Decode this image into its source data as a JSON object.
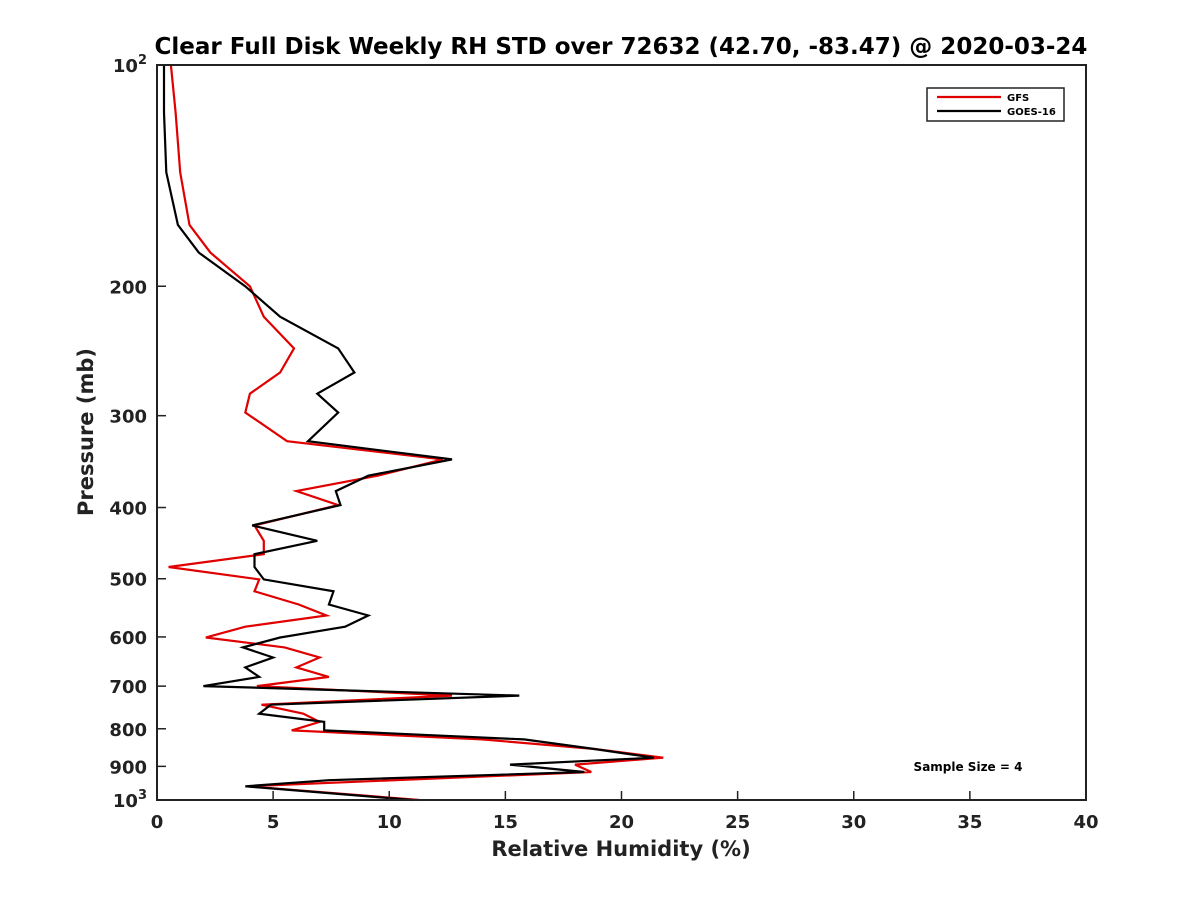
{
  "chart_data": {
    "type": "line",
    "title": "Clear Full Disk Weekly RH STD over 72632 (42.70, -83.47) @ 2020-03-24",
    "xlabel": "Relative Humidity (%)",
    "ylabel": "Pressure (mb)",
    "xlim": [
      0,
      40
    ],
    "ylim": [
      100,
      1000
    ],
    "y_scale": "log",
    "y_reversed": true,
    "grid": false,
    "legend_position": "top-right",
    "x_ticks": [
      "0",
      "5",
      "10",
      "15",
      "20",
      "25",
      "30",
      "35",
      "40"
    ],
    "y_ticks": [
      {
        "value": 100,
        "base": "10",
        "exp": "2"
      },
      {
        "value": 200,
        "label": "200"
      },
      {
        "value": 300,
        "label": "300"
      },
      {
        "value": 400,
        "label": "400"
      },
      {
        "value": 500,
        "label": "500"
      },
      {
        "value": 600,
        "label": "600"
      },
      {
        "value": 700,
        "label": "700"
      },
      {
        "value": 800,
        "label": "800"
      },
      {
        "value": 900,
        "label": "900"
      },
      {
        "value": 1000,
        "base": "10",
        "exp": "3"
      }
    ],
    "annotation": "Sample Size = 4",
    "series": [
      {
        "name": "GFS",
        "color": "#e00000",
        "points": [
          [
            0.6,
            100
          ],
          [
            0.8,
            116
          ],
          [
            1.0,
            140
          ],
          [
            1.4,
            165
          ],
          [
            2.3,
            180
          ],
          [
            4.0,
            200
          ],
          [
            4.6,
            220
          ],
          [
            5.9,
            243
          ],
          [
            5.3,
            262
          ],
          [
            4.0,
            280
          ],
          [
            3.8,
            297
          ],
          [
            5.6,
            325
          ],
          [
            12.3,
            344
          ],
          [
            9.5,
            362
          ],
          [
            6.0,
            380
          ],
          [
            7.8,
            397
          ],
          [
            4.2,
            423
          ],
          [
            4.6,
            444
          ],
          [
            4.6,
            463
          ],
          [
            0.5,
            482
          ],
          [
            4.4,
            501
          ],
          [
            4.2,
            520
          ],
          [
            6.1,
            542
          ],
          [
            7.3,
            561
          ],
          [
            3.8,
            581
          ],
          [
            2.1,
            601
          ],
          [
            5.5,
            620
          ],
          [
            7.0,
            640
          ],
          [
            6.0,
            660
          ],
          [
            7.4,
            680
          ],
          [
            4.3,
            700
          ],
          [
            12.7,
            721
          ],
          [
            4.5,
            742
          ],
          [
            6.3,
            763
          ],
          [
            7.0,
            783
          ],
          [
            5.8,
            804
          ],
          [
            14.0,
            827
          ],
          [
            18.8,
            852
          ],
          [
            21.8,
            876
          ],
          [
            18.0,
            895
          ],
          [
            18.7,
            916
          ],
          [
            3.9,
            958
          ],
          [
            11.3,
            1000
          ]
        ]
      },
      {
        "name": "GOES-16",
        "color": "#000000",
        "points": [
          [
            0.3,
            100
          ],
          [
            0.3,
            116
          ],
          [
            0.4,
            140
          ],
          [
            0.9,
            165
          ],
          [
            1.8,
            180
          ],
          [
            3.8,
            200
          ],
          [
            5.3,
            220
          ],
          [
            7.8,
            243
          ],
          [
            8.5,
            262
          ],
          [
            6.9,
            280
          ],
          [
            7.8,
            297
          ],
          [
            6.5,
            325
          ],
          [
            12.7,
            344
          ],
          [
            9.1,
            362
          ],
          [
            7.7,
            380
          ],
          [
            7.9,
            397
          ],
          [
            4.1,
            423
          ],
          [
            6.9,
            444
          ],
          [
            4.2,
            463
          ],
          [
            4.2,
            482
          ],
          [
            4.6,
            501
          ],
          [
            7.6,
            520
          ],
          [
            7.4,
            542
          ],
          [
            9.1,
            561
          ],
          [
            8.1,
            581
          ],
          [
            5.3,
            601
          ],
          [
            3.7,
            620
          ],
          [
            5.0,
            640
          ],
          [
            3.8,
            660
          ],
          [
            4.4,
            680
          ],
          [
            2.0,
            700
          ],
          [
            15.6,
            721
          ],
          [
            4.9,
            742
          ],
          [
            4.4,
            763
          ],
          [
            7.2,
            783
          ],
          [
            7.2,
            804
          ],
          [
            15.8,
            827
          ],
          [
            18.8,
            852
          ],
          [
            21.4,
            876
          ],
          [
            15.2,
            895
          ],
          [
            18.4,
            916
          ],
          [
            7.4,
            940
          ],
          [
            3.8,
            958
          ],
          [
            11.0,
            1000
          ]
        ]
      }
    ]
  }
}
